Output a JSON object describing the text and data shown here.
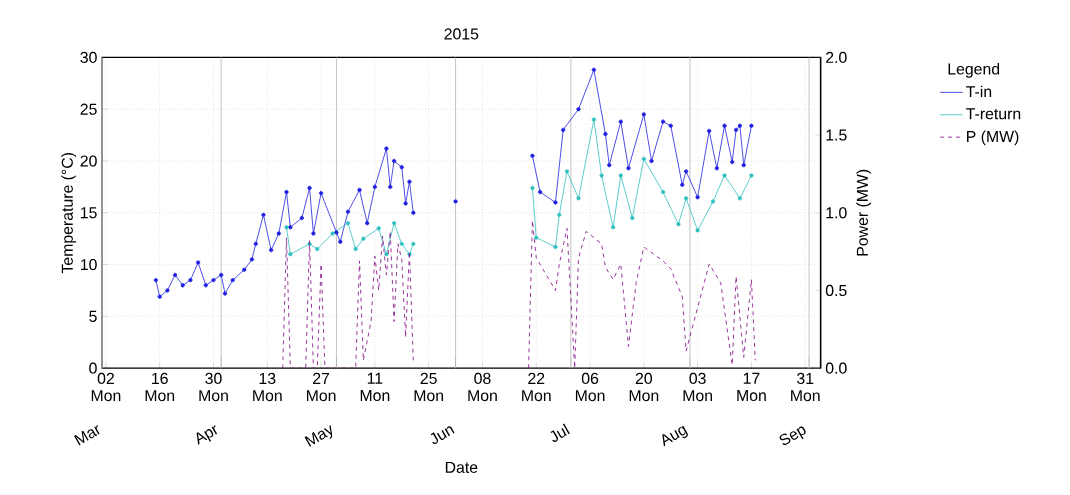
{
  "chart_data": {
    "type": "line",
    "title": "2015",
    "xlabel": "Date",
    "ylabel": "Temperature (°C)",
    "y2label": "Power (MW)",
    "legend_title": "Legend",
    "legend": "right",
    "grid": true,
    "xlim": [
      "2015-03-01",
      "2015-09-04"
    ],
    "x2lim": [
      "2015-03-01",
      "2015-09-04"
    ],
    "x2ticks": [
      {
        "value": "2015-03-01",
        "label": "Mar"
      },
      {
        "value": "2015-04-01",
        "label": "Apr"
      },
      {
        "value": "2015-05-01",
        "label": "May"
      },
      {
        "value": "2015-06-01",
        "label": "Jun"
      },
      {
        "value": "2015-07-01",
        "label": "Jul"
      },
      {
        "value": "2015-08-01",
        "label": "Aug"
      },
      {
        "value": "2015-09-01",
        "label": "Sep"
      }
    ],
    "xticks": [
      {
        "value": "2015-03-02",
        "label": "02 Mon"
      },
      {
        "value": "2015-03-16",
        "label": "16 Mon"
      },
      {
        "value": "2015-03-30",
        "label": "30 Mon"
      },
      {
        "value": "2015-04-13",
        "label": "13 Mon"
      },
      {
        "value": "2015-04-27",
        "label": "27 Mon"
      },
      {
        "value": "2015-05-11",
        "label": "11 Mon"
      },
      {
        "value": "2015-05-25",
        "label": "25 Mon"
      },
      {
        "value": "2015-06-08",
        "label": "08 Mon"
      },
      {
        "value": "2015-06-22",
        "label": "22 Mon"
      },
      {
        "value": "2015-07-06",
        "label": "06 Mon"
      },
      {
        "value": "2015-07-20",
        "label": "20 Mon"
      },
      {
        "value": "2015-08-03",
        "label": "03 Mon"
      },
      {
        "value": "2015-08-17",
        "label": "17 Mon"
      },
      {
        "value": "2015-08-31",
        "label": "31 Mon"
      }
    ],
    "ylim": [
      0,
      30
    ],
    "yticks": [
      0,
      5,
      10,
      15,
      20,
      25,
      30
    ],
    "y2lim": [
      0,
      2
    ],
    "y2ticks": [
      {
        "value": 0,
        "label": "0.0"
      },
      {
        "value": 0.5,
        "label": "0.5"
      },
      {
        "value": 1,
        "label": "1.0"
      },
      {
        "value": 1.5,
        "label": "1.5"
      },
      {
        "value": 2,
        "label": "2.0"
      }
    ],
    "series": [
      {
        "name": "T-in",
        "color": "#2020e0",
        "marker": "circle",
        "line_style": "solid",
        "x": [
          "2015-03-15",
          "2015-03-16",
          "2015-03-18",
          "2015-03-20",
          "2015-03-22",
          "2015-03-24",
          "2015-03-26",
          "2015-03-28",
          "2015-03-30",
          "2015-04-01",
          "2015-04-02",
          "2015-04-04",
          "2015-04-07",
          "2015-04-09",
          "2015-04-10",
          "2015-04-12",
          "2015-04-14",
          "2015-04-16",
          "2015-04-18",
          "2015-04-19",
          "2015-04-22",
          "2015-04-24",
          "2015-04-25",
          "2015-04-27",
          "2015-05-01",
          "2015-05-02",
          "2015-05-04",
          "2015-05-07",
          "2015-05-09",
          "2015-05-11",
          "2015-05-14",
          "2015-05-15",
          "2015-05-16",
          "2015-05-18",
          "2015-05-19",
          "2015-05-20",
          "2015-05-21",
          "2015-05-26",
          "2015-06-01",
          "2015-06-10",
          "2015-06-21",
          "2015-06-23",
          "2015-06-27",
          "2015-06-29",
          "2015-07-03",
          "2015-07-07",
          "2015-07-10",
          "2015-07-11",
          "2015-07-14",
          "2015-07-16",
          "2015-07-20",
          "2015-07-22",
          "2015-07-25",
          "2015-07-27",
          "2015-07-30",
          "2015-07-31",
          "2015-08-03",
          "2015-08-06",
          "2015-08-08",
          "2015-08-10",
          "2015-08-12",
          "2015-08-13",
          "2015-08-14",
          "2015-08-15",
          "2015-08-17"
        ],
        "values": [
          8.5,
          6.9,
          7.5,
          9,
          8,
          8.5,
          10.2,
          8,
          8.5,
          9,
          7.2,
          8.5,
          9.5,
          10.5,
          12,
          14.8,
          11.4,
          13,
          17,
          13.6,
          14.5,
          17.4,
          13,
          16.9,
          13.1,
          12.2,
          15.1,
          17.2,
          14,
          17.5,
          21.2,
          17.5,
          20,
          19.4,
          15.9,
          18,
          15,
          null,
          16.1,
          null,
          20.5,
          17,
          16,
          23,
          25,
          28.8,
          22.6,
          19.6,
          23.8,
          19.3,
          24.5,
          20,
          23.8,
          23.4,
          17.7,
          19,
          16.5,
          22.9,
          19.3,
          23.4,
          19.9,
          23,
          23.4,
          19.6,
          23.4
        ]
      },
      {
        "name": "T-return",
        "color": "#30c0c0",
        "marker": "circle",
        "line_style": "solid",
        "x": [
          "2015-04-18",
          "2015-04-19",
          "2015-04-24",
          "2015-04-26",
          "2015-04-30",
          "2015-05-04",
          "2015-05-06",
          "2015-05-08",
          "2015-05-12",
          "2015-05-14",
          "2015-05-16",
          "2015-05-18",
          "2015-05-20",
          "2015-05-21",
          "2015-05-26",
          "2015-06-21",
          "2015-06-22",
          "2015-06-27",
          "2015-06-28",
          "2015-06-30",
          "2015-07-03",
          "2015-07-07",
          "2015-07-09",
          "2015-07-12",
          "2015-07-14",
          "2015-07-17",
          "2015-07-20",
          "2015-07-25",
          "2015-07-29",
          "2015-07-31",
          "2015-08-03",
          "2015-08-07",
          "2015-08-10",
          "2015-08-14",
          "2015-08-17"
        ],
        "values": [
          13.6,
          11,
          12,
          11.5,
          13,
          14,
          11.5,
          12.5,
          13.5,
          11,
          14,
          12,
          11,
          12,
          null,
          17.4,
          12.6,
          11.7,
          14.8,
          19,
          16.4,
          24,
          18.6,
          13.6,
          18.6,
          14.5,
          20.2,
          17,
          13.9,
          16.4,
          13.3,
          16.1,
          18.6,
          16.4,
          18.6
        ]
      },
      {
        "name": "P (MW)",
        "color": "#800080",
        "line_style": "dashed",
        "axis": "y2",
        "x": [
          "2015-04-17",
          "2015-04-18",
          "2015-04-19",
          "2015-04-23",
          "2015-04-24",
          "2015-04-25",
          "2015-04-26",
          "2015-04-27",
          "2015-04-28",
          "2015-05-06",
          "2015-05-07",
          "2015-05-08",
          "2015-05-10",
          "2015-05-11",
          "2015-05-12",
          "2015-05-13",
          "2015-05-14",
          "2015-05-15",
          "2015-05-16",
          "2015-05-17",
          "2015-05-18",
          "2015-05-19",
          "2015-05-20",
          "2015-05-21",
          "2015-05-26",
          "2015-06-20",
          "2015-06-21",
          "2015-06-22",
          "2015-06-27",
          "2015-06-28",
          "2015-06-30",
          "2015-07-02",
          "2015-07-03",
          "2015-07-05",
          "2015-07-09",
          "2015-07-10",
          "2015-07-12",
          "2015-07-14",
          "2015-07-16",
          "2015-07-18",
          "2015-07-20",
          "2015-07-25",
          "2015-07-27",
          "2015-07-30",
          "2015-07-31",
          "2015-08-03",
          "2015-08-06",
          "2015-08-09",
          "2015-08-12",
          "2015-08-13",
          "2015-08-15",
          "2015-08-17",
          "2015-08-18"
        ],
        "values": [
          0,
          0.84,
          0,
          0,
          0.82,
          0,
          0,
          0.67,
          0,
          0,
          0.69,
          0.05,
          0.3,
          0.72,
          0.5,
          0.85,
          0.6,
          0.88,
          0.3,
          0.8,
          0.7,
          0.2,
          0.75,
          0.05,
          null,
          0,
          0.95,
          0.71,
          0.5,
          0.67,
          0.9,
          0,
          0.71,
          0.88,
          0.8,
          0.65,
          0.57,
          0.67,
          0.14,
          0.55,
          0.78,
          0.69,
          0.64,
          0.46,
          0.11,
          0.39,
          0.67,
          0.55,
          0.02,
          0.59,
          0.07,
          0.57,
          0.05
        ]
      }
    ]
  }
}
